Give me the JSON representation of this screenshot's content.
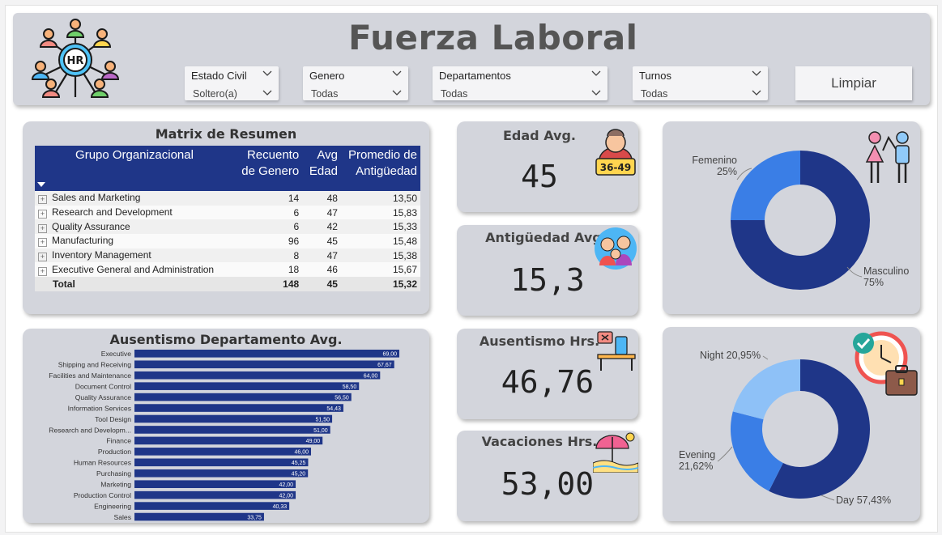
{
  "header": {
    "title": "Fuerza Laboral",
    "logo_text": "HR"
  },
  "slicers": [
    {
      "label": "Estado Civil",
      "value": "Soltero(a)"
    },
    {
      "label": "Genero",
      "value": "Todas"
    },
    {
      "label": "Departamentos",
      "value": "Todas"
    },
    {
      "label": "Turnos",
      "value": "Todas"
    }
  ],
  "clear_button": "Limpiar",
  "matrix": {
    "title": "Matrix de Resumen",
    "headers": [
      "Grupo Organizacional",
      "Recuento de Genero",
      "Avg Edad",
      "Promedio de Antigüedad"
    ],
    "rows": [
      {
        "group": "Sales and Marketing",
        "count": "14",
        "age": "48",
        "tenure": "13,50"
      },
      {
        "group": "Research and Development",
        "count": "6",
        "age": "47",
        "tenure": "15,83"
      },
      {
        "group": "Quality Assurance",
        "count": "6",
        "age": "42",
        "tenure": "15,33"
      },
      {
        "group": "Manufacturing",
        "count": "96",
        "age": "45",
        "tenure": "15,48"
      },
      {
        "group": "Inventory Management",
        "count": "8",
        "age": "47",
        "tenure": "15,38"
      },
      {
        "group": "Executive General and Administration",
        "count": "18",
        "age": "46",
        "tenure": "15,67"
      }
    ],
    "total": {
      "label": "Total",
      "count": "148",
      "age": "45",
      "tenure": "15,32"
    }
  },
  "kpis": {
    "edad": {
      "title": "Edad Avg.",
      "value": "45",
      "badge": "36-49"
    },
    "antiguedad": {
      "title": "Antigüedad Avg.",
      "value": "15,3"
    },
    "ausentismo": {
      "title": "Ausentismo Hrs.",
      "value": "46,76"
    },
    "vacaciones": {
      "title": "Vacaciones Hrs.",
      "value": "53,00"
    }
  },
  "colors": {
    "dark": "#1f3688",
    "mid": "#3a7ee6",
    "light": "#8ec1f7",
    "card": "#d3d5dc"
  },
  "chart_data": [
    {
      "type": "bar",
      "title": "Ausentismo Departamento Avg.",
      "orientation": "horizontal",
      "categories": [
        "Executive",
        "Shipping and Receiving",
        "Facilities and Maintenance",
        "Document Control",
        "Quality Assurance",
        "Information Services",
        "Tool Design",
        "Research and Developm...",
        "Finance",
        "Production",
        "Human Resources",
        "Purchasing",
        "Marketing",
        "Production Control",
        "Engineering",
        "Sales"
      ],
      "values": [
        69.0,
        67.67,
        64.0,
        58.5,
        56.5,
        54.43,
        51.5,
        51.0,
        49.0,
        46.0,
        45.25,
        45.2,
        42.0,
        42.0,
        40.33,
        33.75
      ],
      "labels": [
        "69,00",
        "67,67",
        "64,00",
        "58,50",
        "56,50",
        "54,43",
        "51,50",
        "51,00",
        "49,00",
        "46,00",
        "45,25",
        "45,20",
        "42,00",
        "42,00",
        "40,33",
        "33,75"
      ]
    },
    {
      "type": "pie",
      "series": [
        {
          "name": "Femenino",
          "value": 25,
          "label": "25%",
          "color": "#3a7ee6"
        },
        {
          "name": "Masculino",
          "value": 75,
          "label": "75%",
          "color": "#1f3688"
        }
      ]
    },
    {
      "type": "pie",
      "series": [
        {
          "name": "Night",
          "value": 20.95,
          "label": "20,95%",
          "color": "#8ec1f7"
        },
        {
          "name": "Evening",
          "value": 21.62,
          "label": "21,62%",
          "color": "#3a7ee6"
        },
        {
          "name": "Day",
          "value": 57.43,
          "label": "57,43%",
          "color": "#1f3688"
        }
      ]
    }
  ]
}
